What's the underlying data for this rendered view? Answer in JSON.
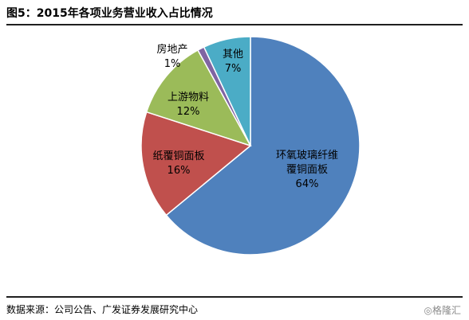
{
  "header": {
    "title": "图5：2015年各项业务营业收入占比情况"
  },
  "footer": {
    "source": "数据来源：公司公告、广发证券发展研究中心",
    "watermark": "格隆汇"
  },
  "chart_data": {
    "type": "pie",
    "title": "图5：2015年各项业务营业收入占比情况",
    "slices": [
      {
        "label": "环氧玻璃纤维覆铜面板",
        "lines": [
          "环氧玻璃纤维",
          "覆铜面板"
        ],
        "value": 64,
        "display": "64%",
        "color": "#4f81bd"
      },
      {
        "label": "纸覆铜面板",
        "lines": [
          "纸覆铜面板"
        ],
        "value": 16,
        "display": "16%",
        "color": "#c0504d"
      },
      {
        "label": "上游物料",
        "lines": [
          "上游物料"
        ],
        "value": 12,
        "display": "12%",
        "color": "#9bbb59"
      },
      {
        "label": "房地产",
        "lines": [
          "房地产"
        ],
        "value": 1,
        "display": "1%",
        "color": "#8064a2"
      },
      {
        "label": "其他",
        "lines": [
          "其他"
        ],
        "value": 7,
        "display": "7%",
        "color": "#4bacc6"
      }
    ],
    "legend": "none",
    "start_angle": "12 o'clock",
    "direction": "clockwise"
  }
}
